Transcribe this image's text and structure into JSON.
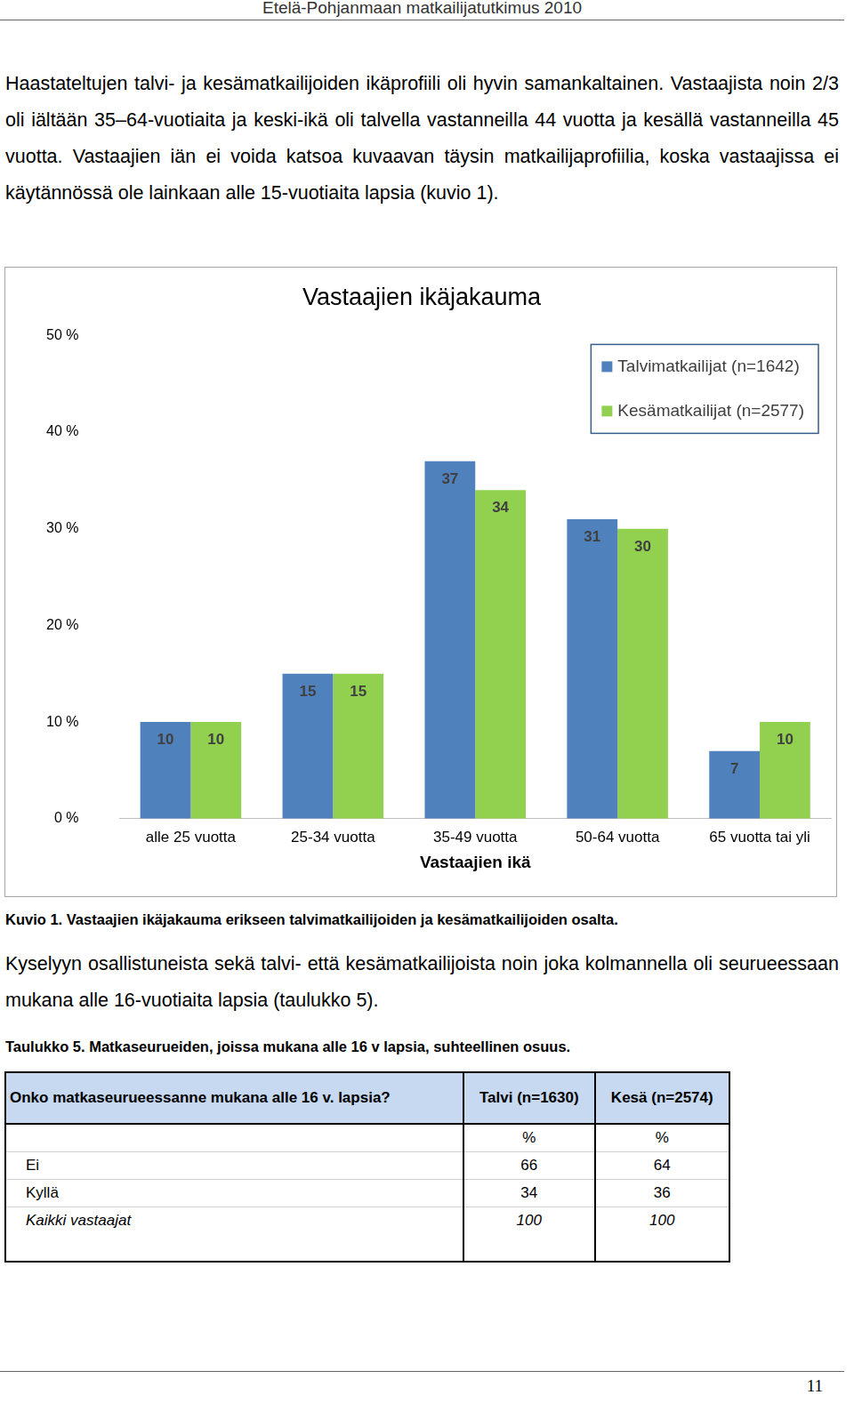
{
  "header": {
    "title": "Etelä-Pohjanmaan matkailijatutkimus 2010"
  },
  "paragraphs": [
    "Haastateltujen talvi- ja kesämatkailijoiden ikäprofiili oli hyvin samankaltainen. Vastaajista noin 2/3 oli iältään 35–64-vuotiaita ja keski-ikä oli talvella vastanneilla 44 vuotta ja kesällä vastanneilla 45 vuotta. Vastaajien iän ei voida katsoa kuvaavan täysin matkailijaprofiilia, koska vastaajissa ei käytännössä ole lainkaan alle 15-vuotiaita lapsia (kuvio 1).",
    "Kyselyyn osallistuneista sekä talvi- että kesämatkailijoista noin joka kolmannella oli seurueessaan mukana alle 16-vuotiaita lapsia (taulukko 5)."
  ],
  "chart_data": {
    "type": "bar",
    "title": "Vastaajien ikäjakauma",
    "categories": [
      "alle 25 vuotta",
      "25-34 vuotta",
      "35-49 vuotta",
      "50-64 vuotta",
      "65 vuotta tai yli"
    ],
    "x_label": "Vastaajien ikä",
    "series": [
      {
        "name": "Talvimatkailijat (n=1642)",
        "color": "#4f81bd",
        "values": [
          10,
          15,
          37,
          31,
          7
        ]
      },
      {
        "name": "Kesämatkailijat (n=2577)",
        "color": "#92d050",
        "values": [
          10,
          15,
          34,
          30,
          10
        ]
      }
    ],
    "ylim": [
      0,
      50
    ],
    "yticks": [
      {
        "value": 0,
        "label": "0 %"
      },
      {
        "value": 10,
        "label": "10 %"
      },
      {
        "value": 20,
        "label": "20 %"
      },
      {
        "value": 30,
        "label": "30 %"
      },
      {
        "value": 40,
        "label": "40 %"
      },
      {
        "value": 50,
        "label": "50 %"
      }
    ],
    "grid": false,
    "legend": "upper right",
    "data_labels": true
  },
  "figure_caption": "Kuvio 1. Vastaajien ikäjakauma erikseen talvimatkailijoiden ja kesämatkailijoiden osalta.",
  "table": {
    "caption": "Taulukko 5. Matkaseurueiden, joissa mukana alle 16 v lapsia, suhteellinen osuus.",
    "columns": [
      "Onko matkaseurueessanne mukana alle 16 v. lapsia?",
      "Talvi (n=1630)",
      "Kesä (n=2574)"
    ],
    "unit_row": [
      "%",
      "%"
    ],
    "rows": [
      [
        "Ei",
        66,
        64
      ],
      [
        "Kyllä",
        34,
        36
      ],
      [
        "Kaikki vastaajat",
        100,
        100
      ]
    ]
  },
  "page_number": 11
}
